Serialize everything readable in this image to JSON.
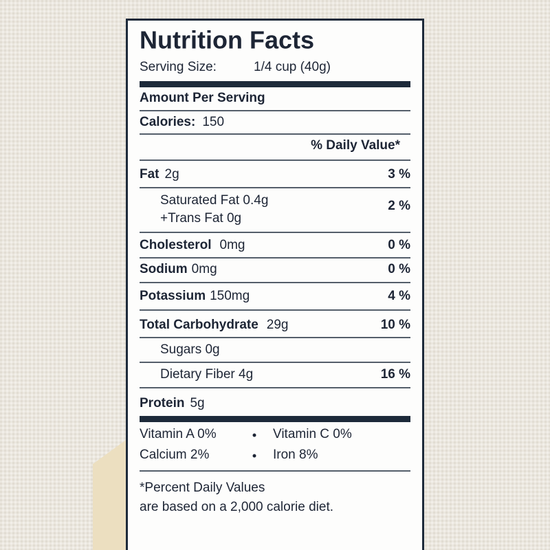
{
  "title": "Nutrition Facts",
  "serving_size": {
    "label": "Serving Size:",
    "value": "1/4 cup (40g)"
  },
  "amount_per_serving": "Amount Per Serving",
  "calories": {
    "label": "Calories:",
    "value": "150"
  },
  "daily_value_header": "% Daily Value*",
  "fat": {
    "name": "Fat",
    "amount": "2g",
    "dv": "3 %"
  },
  "fat_detail": {
    "lines": [
      "Saturated Fat 0.4g",
      "+Trans Fat 0g"
    ],
    "dv": "2 %"
  },
  "cholesterol": {
    "name": "Cholesterol",
    "amount": "0mg",
    "dv": "0 %"
  },
  "sodium": {
    "name": "Sodium",
    "amount": "0mg",
    "dv": "0 %"
  },
  "potassium": {
    "name": "Potassium",
    "amount": "150mg",
    "dv": "4 %"
  },
  "carbohydrate": {
    "name": "Total Carbohydrate",
    "amount": "29g",
    "dv": "10 %"
  },
  "sugars": "Sugars 0g",
  "fiber": {
    "text": "Dietary Fiber 4g",
    "dv": "16 %"
  },
  "protein": {
    "name": "Protein",
    "amount": "5g"
  },
  "vitamins": [
    [
      "Vitamin A 0%",
      "Vitamin C 0%"
    ],
    [
      "Calcium 2%",
      "Iron 8%"
    ]
  ],
  "footnote": [
    "*Percent Daily Values",
    "are based on a 2,000 calorie diet."
  ]
}
